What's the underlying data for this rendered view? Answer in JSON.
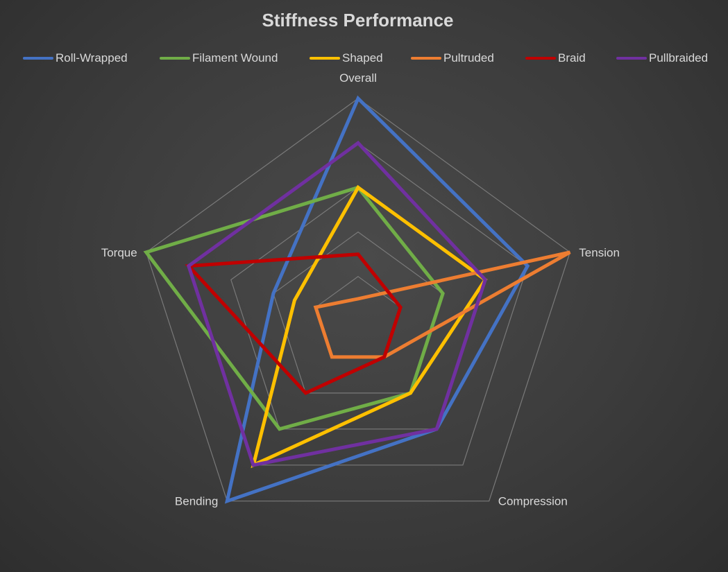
{
  "chart_data": {
    "type": "radar",
    "title": "Stiffness Performance",
    "axes": [
      "Overall",
      "Tension",
      "Compression",
      "Bending",
      "Torque"
    ],
    "range": [
      0,
      5
    ],
    "rings": 5,
    "grid": true,
    "legend_position": "top",
    "series": [
      {
        "name": "Roll-Wrapped",
        "color": "#4472c4",
        "values": [
          5.0,
          4.0,
          3.0,
          5.0,
          2.0
        ]
      },
      {
        "name": "Filament Wound",
        "color": "#70ad47",
        "values": [
          3.0,
          2.0,
          2.0,
          3.0,
          5.0
        ]
      },
      {
        "name": "Shaped",
        "color": "#ffc000",
        "values": [
          3.0,
          3.0,
          2.0,
          4.0,
          1.5
        ]
      },
      {
        "name": "Pultruded",
        "color": "#ed7d31",
        "values": [
          0.5,
          5.0,
          1.0,
          1.0,
          1.0
        ]
      },
      {
        "name": "Braid",
        "color": "#c00000",
        "values": [
          1.5,
          1.0,
          1.0,
          2.0,
          4.0
        ]
      },
      {
        "name": "Pullbraided",
        "color": "#7030a0",
        "values": [
          4.0,
          3.0,
          3.0,
          4.0,
          4.0
        ]
      }
    ]
  }
}
